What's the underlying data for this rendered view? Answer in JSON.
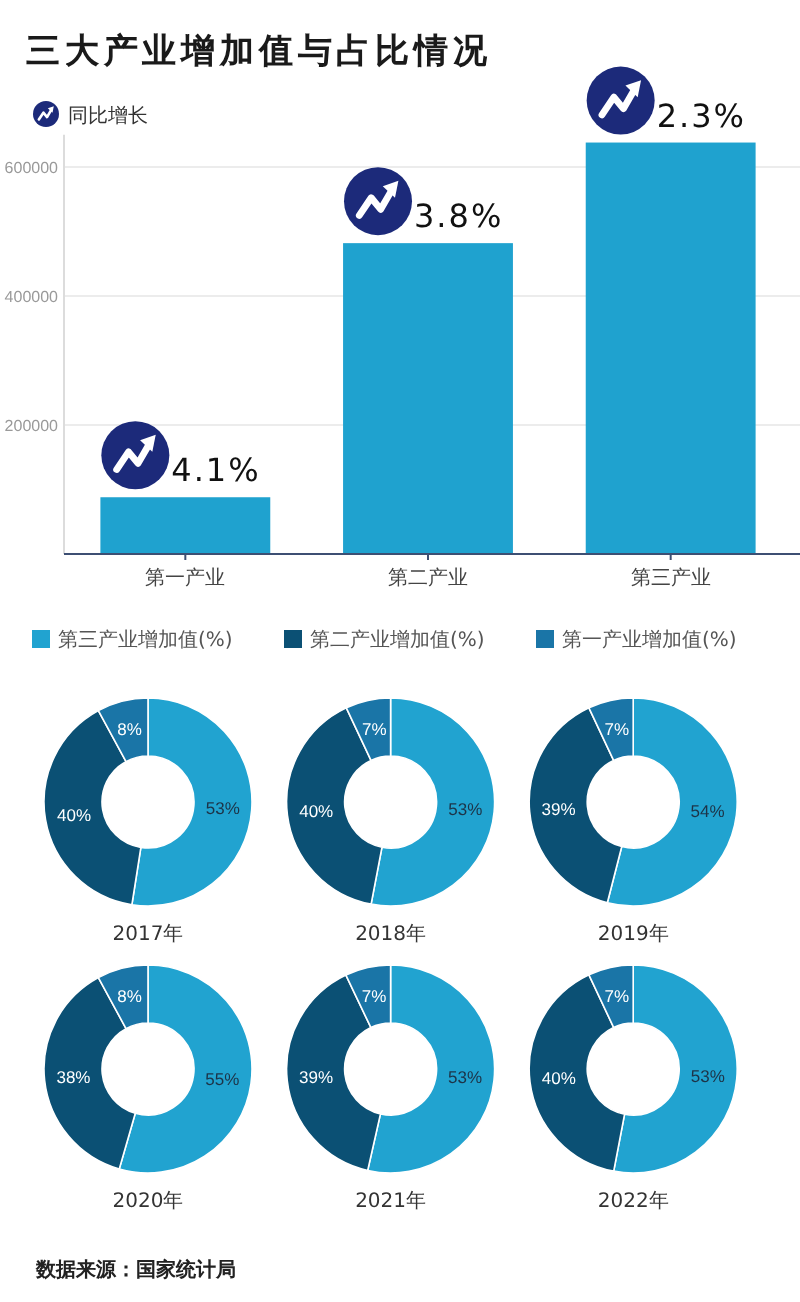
{
  "chart_data": [
    {
      "type": "bar",
      "title": "三大产业增加值与占比情况",
      "categories": [
        "第一产业",
        "第二产业",
        "第三产业"
      ],
      "values": [
        88000,
        482000,
        638000
      ],
      "color": "#1fa2cf",
      "ylim": [
        0,
        650000
      ],
      "yticks": [
        200000,
        400000,
        600000
      ],
      "grid": "y",
      "annotations": [
        "同比增长",
        {
          "text": "4.1%",
          "x": "第一产业",
          "y": 88000
        },
        {
          "text": "3.8%",
          "x": "第二产业",
          "y": 482000
        },
        {
          "text": "2.3%",
          "x": "第三产业",
          "y": 638000
        }
      ]
    },
    {
      "type": "donut",
      "title": "2017年",
      "categories": [
        "第三产业增加值(%)",
        "第二产业增加值(%)",
        "第一产业增加值(%)"
      ],
      "values": [
        53,
        40,
        8
      ],
      "colors": [
        "#21a3d0",
        "#0b5074",
        "#1a75a7"
      ],
      "value_labels": [
        "53%",
        "40%",
        "8%"
      ],
      "legend": "top"
    },
    {
      "type": "donut",
      "title": "2018年",
      "categories": [
        null,
        null,
        null
      ],
      "values": [
        53,
        40,
        7
      ],
      "colors": [
        "#21a3d0",
        "#0b5074",
        "#1a75a7"
      ],
      "value_labels": [
        "53%",
        "40%",
        "7%"
      ]
    },
    {
      "type": "donut",
      "title": "2019年",
      "categories": [
        null,
        null,
        null
      ],
      "values": [
        54,
        39,
        7
      ],
      "colors": [
        "#21a3d0",
        "#0b5074",
        "#1a75a7"
      ],
      "value_labels": [
        "54%",
        "39%",
        "7%"
      ]
    },
    {
      "type": "donut",
      "title": "2020年",
      "categories": [
        null,
        null,
        null
      ],
      "values": [
        55,
        38,
        8
      ],
      "colors": [
        "#21a3d0",
        "#0b5074",
        "#1a75a7"
      ],
      "value_labels": [
        "55%",
        "38%",
        "8%"
      ]
    },
    {
      "type": "donut",
      "title": "2021年",
      "categories": [
        null,
        null,
        null
      ],
      "values": [
        53,
        39,
        7
      ],
      "colors": [
        "#21a3d0",
        "#0b5074",
        "#1a75a7"
      ],
      "value_labels": [
        "53%",
        "39%",
        "7%"
      ]
    },
    {
      "type": "donut",
      "title": "2022年",
      "categories": [
        null,
        null,
        null
      ],
      "values": [
        53,
        40,
        7
      ],
      "colors": [
        "#21a3d0",
        "#0b5074",
        "#1a75a7"
      ],
      "value_labels": [
        "53%",
        "40%",
        "7%"
      ],
      "annotations": [
        "数据来源：国家统计局"
      ]
    }
  ]
}
